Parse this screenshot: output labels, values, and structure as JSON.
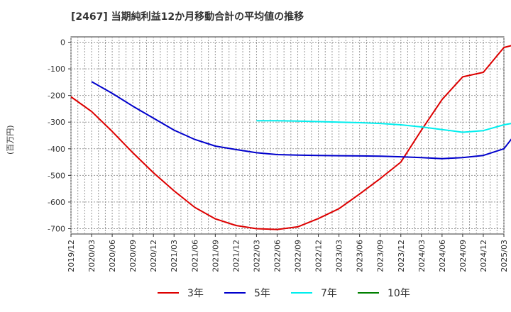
{
  "chart_data": {
    "type": "line",
    "title": "[2467]  当期純利益12か月移動合計の平均値の推移",
    "ylabel": "(百万円)",
    "xlabel": "",
    "ylim": [
      -720,
      20
    ],
    "yticks": [
      0,
      -100,
      -200,
      -300,
      -400,
      -500,
      -600,
      -700
    ],
    "x_ticks": [
      "2019/12",
      "2020/03",
      "2020/06",
      "2020/09",
      "2020/12",
      "2021/03",
      "2021/06",
      "2021/09",
      "2021/12",
      "2022/03",
      "2022/06",
      "2022/09",
      "2022/12",
      "2023/03",
      "2023/06",
      "2023/09",
      "2023/12",
      "2024/03",
      "2024/06",
      "2024/09",
      "2024/12",
      "2025/03"
    ],
    "grid": true,
    "legend_position": "bottom",
    "series": [
      {
        "name": "3年",
        "color": "#dd0000",
        "points": [
          [
            "2019/12",
            -205
          ],
          [
            "2020/03",
            -260
          ],
          [
            "2020/06",
            -335
          ],
          [
            "2020/09",
            -415
          ],
          [
            "2020/12",
            -490
          ],
          [
            "2021/03",
            -558
          ],
          [
            "2021/06",
            -620
          ],
          [
            "2021/09",
            -663
          ],
          [
            "2021/12",
            -688
          ],
          [
            "2022/03",
            -700
          ],
          [
            "2022/06",
            -703
          ],
          [
            "2022/09",
            -693
          ],
          [
            "2022/12",
            -662
          ],
          [
            "2023/03",
            -625
          ],
          [
            "2023/06",
            -570
          ],
          [
            "2023/09",
            -512
          ],
          [
            "2023/12",
            -450
          ],
          [
            "2024/03",
            -330
          ],
          [
            "2024/06",
            -215
          ],
          [
            "2024/09",
            -130
          ],
          [
            "2024/12",
            -113
          ],
          [
            "2025/03",
            -20
          ],
          [
            "2025/06",
            0
          ]
        ]
      },
      {
        "name": "5年",
        "color": "#0000cc",
        "points": [
          [
            "2020/03",
            -148
          ],
          [
            "2020/06",
            -192
          ],
          [
            "2020/09",
            -240
          ],
          [
            "2020/12",
            -285
          ],
          [
            "2021/03",
            -330
          ],
          [
            "2021/06",
            -365
          ],
          [
            "2021/09",
            -390
          ],
          [
            "2021/12",
            -403
          ],
          [
            "2022/03",
            -415
          ],
          [
            "2022/06",
            -422
          ],
          [
            "2022/09",
            -424
          ],
          [
            "2022/12",
            -425
          ],
          [
            "2023/03",
            -426
          ],
          [
            "2023/06",
            -427
          ],
          [
            "2023/09",
            -428
          ],
          [
            "2023/12",
            -430
          ],
          [
            "2024/03",
            -433
          ],
          [
            "2024/06",
            -437
          ],
          [
            "2024/09",
            -433
          ],
          [
            "2024/12",
            -425
          ],
          [
            "2025/03",
            -400
          ],
          [
            "2025/06",
            -300
          ]
        ]
      },
      {
        "name": "7年",
        "color": "#00eeee",
        "points": [
          [
            "2022/03",
            -295
          ],
          [
            "2022/06",
            -295
          ],
          [
            "2022/09",
            -296
          ],
          [
            "2022/12",
            -298
          ],
          [
            "2023/03",
            -300
          ],
          [
            "2023/06",
            -302
          ],
          [
            "2023/09",
            -305
          ],
          [
            "2023/12",
            -310
          ],
          [
            "2024/03",
            -318
          ],
          [
            "2024/06",
            -328
          ],
          [
            "2024/09",
            -338
          ],
          [
            "2024/12",
            -332
          ],
          [
            "2025/03",
            -310
          ],
          [
            "2025/06",
            -296
          ]
        ]
      },
      {
        "name": "10年",
        "color": "#008000",
        "points": []
      }
    ]
  }
}
